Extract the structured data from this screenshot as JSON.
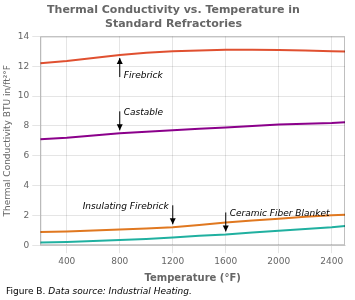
{
  "chart_data": {
    "type": "line",
    "title": "Thermal Conductivity vs. Temperature in\nStandard Refractories",
    "xlabel": "Temperature (°F)",
    "ylabel": "Thermal Conductivity BTU in/ft²°F",
    "caption": [
      "Figure B. ",
      "Data source: Industrial Heating."
    ],
    "xlim": [
      200,
      2500
    ],
    "ylim": [
      0,
      14
    ],
    "xticks": [
      400,
      800,
      1200,
      1600,
      2000,
      2400
    ],
    "yticks": [
      0,
      2,
      4,
      6,
      8,
      10,
      12,
      14
    ],
    "grid": true,
    "x": [
      200,
      400,
      600,
      800,
      1000,
      1200,
      1400,
      1600,
      1800,
      2000,
      2200,
      2400,
      2500
    ],
    "series": [
      {
        "name": "Firebrick",
        "color": "#e05030",
        "values": [
          12.2,
          12.35,
          12.55,
          12.75,
          12.9,
          13.0,
          13.05,
          13.1,
          13.1,
          13.08,
          13.05,
          13.0,
          12.98
        ]
      },
      {
        "name": "Castable",
        "color": "#8b008b",
        "values": [
          7.1,
          7.2,
          7.35,
          7.5,
          7.6,
          7.7,
          7.8,
          7.9,
          8.0,
          8.1,
          8.15,
          8.2,
          8.25
        ]
      },
      {
        "name": "Insulating Firebrick",
        "color": "#e07820",
        "values": [
          0.88,
          0.92,
          0.98,
          1.05,
          1.12,
          1.2,
          1.35,
          1.52,
          1.65,
          1.78,
          1.9,
          2.0,
          2.05
        ]
      },
      {
        "name": "Ceramic Fiber Blanket",
        "color": "#20b0a0",
        "values": [
          0.18,
          0.22,
          0.28,
          0.35,
          0.42,
          0.52,
          0.63,
          0.72,
          0.85,
          0.97,
          1.08,
          1.2,
          1.28
        ]
      }
    ]
  }
}
